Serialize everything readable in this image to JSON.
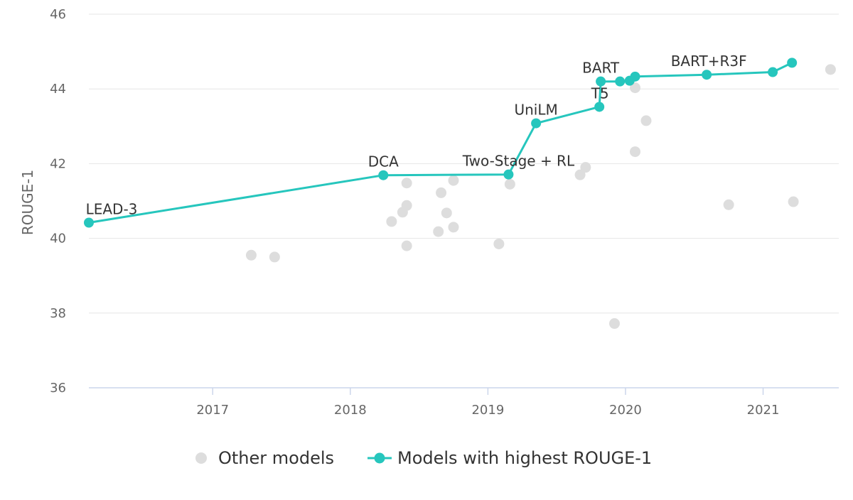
{
  "chart_data": {
    "type": "scatter",
    "title": "",
    "xlabel": "",
    "ylabel": "ROUGE-1",
    "xlim": [
      2016.1,
      2021.55
    ],
    "ylim": [
      36,
      46
    ],
    "x_ticks": [
      "2017",
      "2018",
      "2019",
      "2020",
      "2021"
    ],
    "y_ticks": [
      "36",
      "38",
      "40",
      "42",
      "44",
      "46"
    ],
    "grid": "horizontal",
    "legend_position": "bottom",
    "colors": {
      "best": "#26c6bd",
      "other": "#dddddd",
      "grid": "#e6e6e6",
      "axis": "#ccd6eb"
    },
    "series": [
      {
        "name": "Other models",
        "points": [
          {
            "x": 2017.28,
            "y": 39.55
          },
          {
            "x": 2017.45,
            "y": 39.5
          },
          {
            "x": 2018.3,
            "y": 40.45
          },
          {
            "x": 2018.38,
            "y": 40.7
          },
          {
            "x": 2018.41,
            "y": 40.88
          },
          {
            "x": 2018.41,
            "y": 41.48
          },
          {
            "x": 2018.41,
            "y": 39.8
          },
          {
            "x": 2018.64,
            "y": 40.18
          },
          {
            "x": 2018.66,
            "y": 41.22
          },
          {
            "x": 2018.7,
            "y": 40.68
          },
          {
            "x": 2018.75,
            "y": 41.55
          },
          {
            "x": 2018.75,
            "y": 40.3
          },
          {
            "x": 2019.08,
            "y": 39.85
          },
          {
            "x": 2019.16,
            "y": 41.45
          },
          {
            "x": 2019.67,
            "y": 41.7
          },
          {
            "x": 2019.71,
            "y": 41.9
          },
          {
            "x": 2019.92,
            "y": 37.72
          },
          {
            "x": 2020.07,
            "y": 44.03
          },
          {
            "x": 2020.07,
            "y": 42.32
          },
          {
            "x": 2020.15,
            "y": 43.15
          },
          {
            "x": 2020.75,
            "y": 40.9
          },
          {
            "x": 2021.22,
            "y": 40.98
          },
          {
            "x": 2021.49,
            "y": 44.52
          }
        ]
      },
      {
        "name": "Models with highest ROUGE-1",
        "points": [
          {
            "x": 2016.1,
            "y": 40.42,
            "label": "LEAD-3"
          },
          {
            "x": 2018.24,
            "y": 41.69,
            "label": "DCA"
          },
          {
            "x": 2019.15,
            "y": 41.71,
            "label": "Two-Stage + RL"
          },
          {
            "x": 2019.35,
            "y": 43.08,
            "label": "UniLM"
          },
          {
            "x": 2019.81,
            "y": 43.52,
            "label": "T5"
          },
          {
            "x": 2019.82,
            "y": 44.2,
            "label": "BART"
          },
          {
            "x": 2019.96,
            "y": 44.2
          },
          {
            "x": 2020.03,
            "y": 44.22
          },
          {
            "x": 2020.07,
            "y": 44.33
          },
          {
            "x": 2020.59,
            "y": 44.38,
            "label": "BART+R3F"
          },
          {
            "x": 2021.07,
            "y": 44.45
          },
          {
            "x": 2021.21,
            "y": 44.7
          }
        ]
      }
    ]
  }
}
